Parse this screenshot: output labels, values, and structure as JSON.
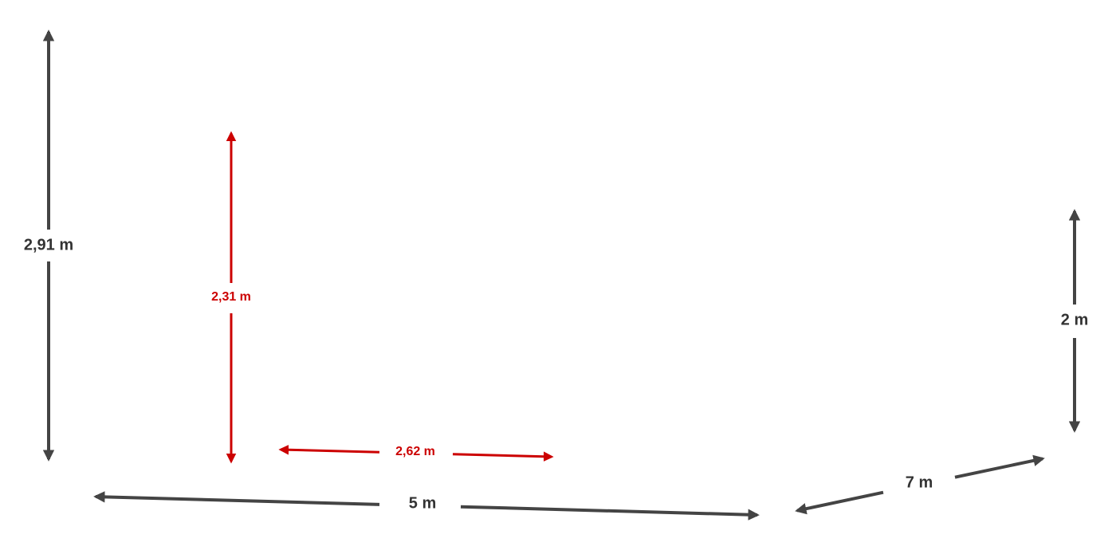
{
  "dimensions": [
    {
      "label": "2,91 m"
    },
    {
      "label": "2,31 m"
    },
    {
      "label": "2,62 m"
    },
    {
      "label": "5 m"
    },
    {
      "label": "7 m"
    },
    {
      "label": "2 m"
    }
  ]
}
